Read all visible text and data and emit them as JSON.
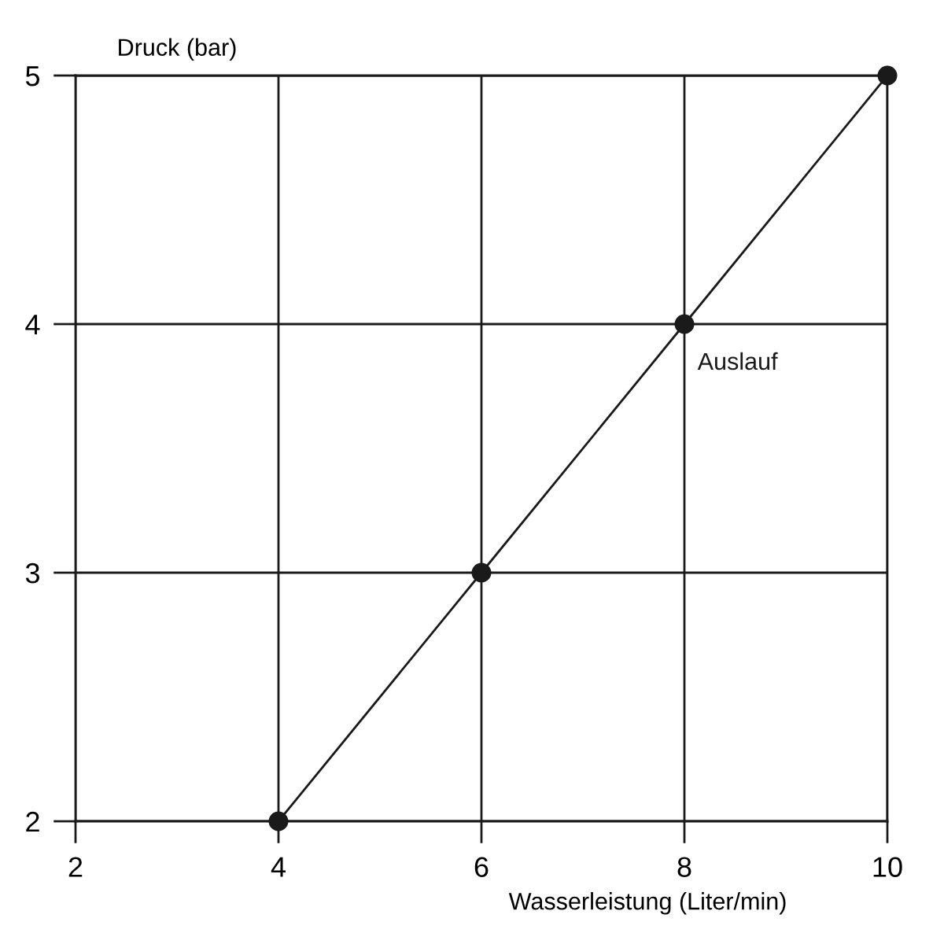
{
  "chart_data": {
    "type": "line",
    "xlabel": "Wasserleistung (Liter/min)",
    "ylabel": "Druck (bar)",
    "x": [
      4,
      6,
      8,
      10
    ],
    "series": [
      {
        "name": "Auslauf",
        "color": "#1a1a1a",
        "values": [
          2,
          3,
          4,
          5
        ]
      }
    ],
    "xlim": [
      2,
      10
    ],
    "xticks": [
      2,
      4,
      6,
      8,
      10
    ],
    "ylim": [
      2,
      5
    ],
    "yticks": [
      2,
      3,
      4,
      5
    ],
    "grid": true,
    "marker": "circle",
    "line_style": "solid",
    "legend": false
  }
}
